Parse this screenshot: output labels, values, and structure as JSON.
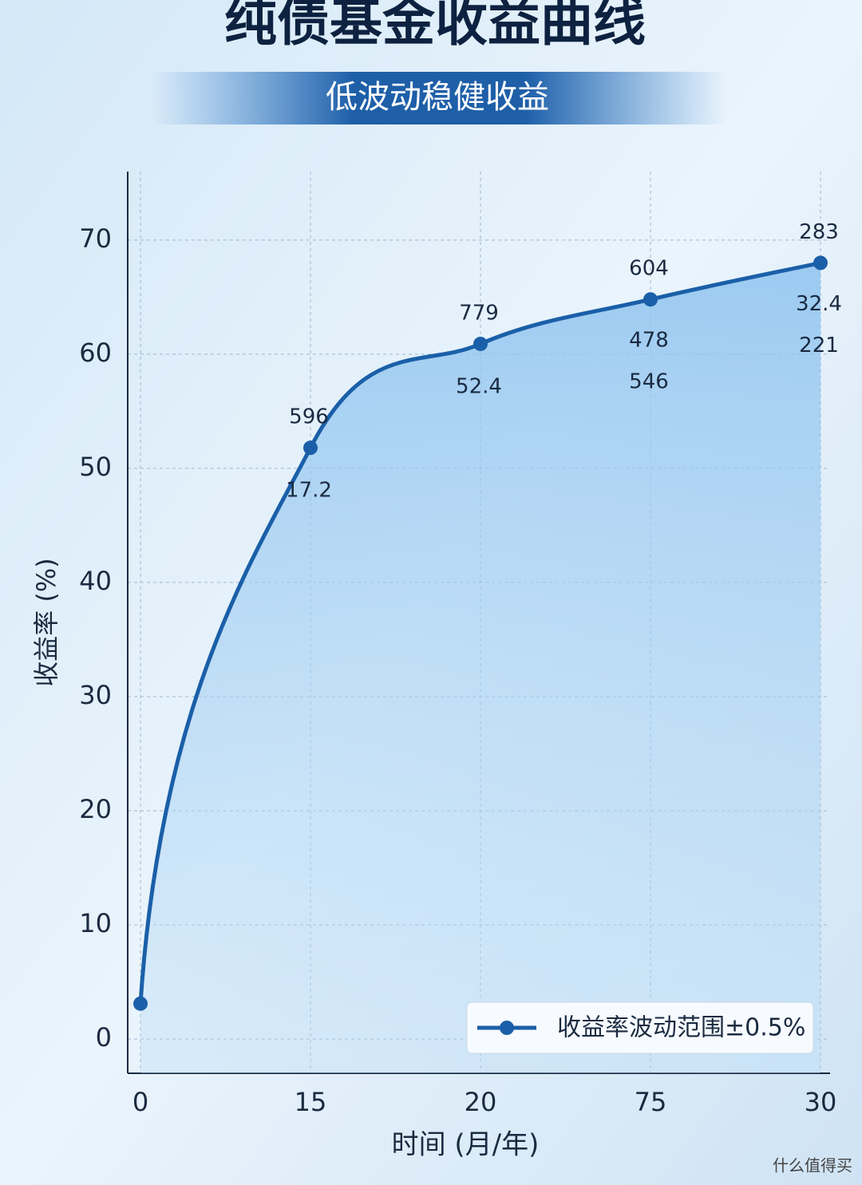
{
  "chart_data": {
    "type": "line",
    "title": "纯债基金收益曲线",
    "subtitle": "低波动稳健收益",
    "x_label": "时间 (月/年)",
    "y_label": "收益率 (%)",
    "categories": [
      "0",
      "15",
      "20",
      "75",
      "30"
    ],
    "series": [
      {
        "name": "收益率波动范围±0.5%",
        "color": "#1a5fa8",
        "values": [
          3.1,
          51.8,
          60.9,
          64.8,
          68.0
        ]
      }
    ],
    "annotations": [
      [],
      [
        "596",
        "17.2"
      ],
      [
        "779",
        "52.4"
      ],
      [
        "604",
        "478",
        "546"
      ],
      [
        "283",
        "32.4",
        "221"
      ]
    ],
    "ylim": [
      -3,
      76
    ],
    "yticks": [
      0,
      10,
      20,
      30,
      40,
      50,
      60,
      70
    ],
    "grid": true,
    "legend": "lower right",
    "watermark": "什么值得买"
  }
}
